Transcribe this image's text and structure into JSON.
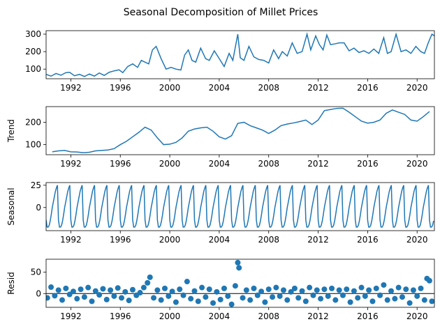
{
  "figure": {
    "title": "Seasonal Decomposition of Millet Prices"
  },
  "chart_data": [
    {
      "type": "line",
      "panel": "observed",
      "ylabel": "",
      "xlim": [
        1990.0,
        2021.4
      ],
      "ylim": [
        45,
        320
      ],
      "yticks": [
        100,
        200,
        300
      ],
      "xticks": [
        1992,
        1996,
        2000,
        2004,
        2008,
        2012,
        2016,
        2020
      ],
      "color": "#1f77b4",
      "x": [
        1990.0,
        1990.4,
        1990.8,
        1991.2,
        1991.6,
        1991.9,
        1992.3,
        1992.7,
        1993.1,
        1993.5,
        1993.9,
        1994.3,
        1994.7,
        1995.1,
        1995.5,
        1995.9,
        1996.2,
        1996.6,
        1997.0,
        1997.4,
        1997.7,
        1998.0,
        1998.3,
        1998.6,
        1998.9,
        1999.3,
        1999.7,
        2000.1,
        2000.5,
        2000.9,
        2001.2,
        2001.5,
        2001.8,
        2002.1,
        2002.5,
        2002.9,
        2003.2,
        2003.6,
        2004.0,
        2004.4,
        2004.8,
        2005.1,
        2005.5,
        2005.7,
        2006.0,
        2006.4,
        2006.8,
        2007.2,
        2007.6,
        2008.0,
        2008.4,
        2008.8,
        2009.1,
        2009.5,
        2009.9,
        2010.3,
        2010.7,
        2011.1,
        2011.4,
        2011.8,
        2012.1,
        2012.4,
        2012.7,
        2013.0,
        2013.4,
        2013.7,
        2014.1,
        2014.5,
        2014.9,
        2015.3,
        2015.7,
        2016.1,
        2016.5,
        2016.9,
        2017.3,
        2017.6,
        2017.9,
        2018.3,
        2018.7,
        2019.1,
        2019.5,
        2019.9,
        2020.3,
        2020.6,
        2020.9,
        2021.2,
        2021.4
      ],
      "y": [
        70,
        60,
        75,
        65,
        80,
        82,
        62,
        70,
        58,
        72,
        60,
        78,
        64,
        82,
        90,
        96,
        80,
        115,
        130,
        110,
        150,
        140,
        130,
        210,
        230,
        160,
        100,
        110,
        100,
        95,
        180,
        210,
        150,
        140,
        220,
        160,
        150,
        205,
        160,
        115,
        190,
        150,
        300,
        165,
        150,
        230,
        170,
        155,
        150,
        135,
        210,
        160,
        200,
        175,
        250,
        190,
        200,
        300,
        210,
        290,
        240,
        210,
        295,
        240,
        245,
        250,
        250,
        205,
        220,
        195,
        205,
        190,
        215,
        190,
        280,
        190,
        200,
        300,
        200,
        210,
        190,
        230,
        200,
        190,
        250,
        300,
        290
      ]
    },
    {
      "type": "line",
      "panel": "trend",
      "ylabel": "Trend",
      "xlim": [
        1990.0,
        2021.4
      ],
      "ylim": [
        55,
        270
      ],
      "yticks": [
        100,
        200
      ],
      "xticks": [
        1992,
        1996,
        2000,
        2004,
        2008,
        2012,
        2016,
        2020
      ],
      "color": "#1f77b4",
      "x": [
        1990.5,
        1991.0,
        1991.5,
        1992.0,
        1992.5,
        1993.0,
        1993.5,
        1994.0,
        1994.5,
        1995.0,
        1995.5,
        1996.0,
        1996.5,
        1997.0,
        1997.5,
        1998.0,
        1998.5,
        1999.0,
        1999.5,
        2000.0,
        2000.5,
        2001.0,
        2001.5,
        2002.0,
        2002.5,
        2003.0,
        2003.5,
        2004.0,
        2004.5,
        2005.0,
        2005.5,
        2006.0,
        2006.5,
        2007.0,
        2007.5,
        2008.0,
        2008.5,
        2009.0,
        2009.5,
        2010.0,
        2010.5,
        2011.0,
        2011.5,
        2012.0,
        2012.5,
        2013.0,
        2013.5,
        2014.0,
        2014.5,
        2015.0,
        2015.5,
        2016.0,
        2016.5,
        2017.0,
        2017.5,
        2018.0,
        2018.5,
        2019.0,
        2019.5,
        2020.0,
        2020.5,
        2021.0
      ],
      "y": [
        68,
        72,
        74,
        68,
        67,
        64,
        66,
        72,
        74,
        76,
        82,
        100,
        115,
        135,
        155,
        178,
        165,
        130,
        100,
        102,
        110,
        130,
        160,
        170,
        175,
        178,
        160,
        135,
        125,
        140,
        195,
        200,
        185,
        175,
        165,
        150,
        165,
        185,
        192,
        197,
        203,
        210,
        190,
        210,
        252,
        257,
        262,
        263,
        245,
        225,
        205,
        196,
        200,
        210,
        240,
        255,
        245,
        235,
        210,
        205,
        225,
        248
      ]
    },
    {
      "type": "line",
      "panel": "seasonal",
      "ylabel": "Seasonal",
      "xlim": [
        1990.0,
        2021.4
      ],
      "ylim": [
        -26,
        28
      ],
      "yticks": [
        0,
        25
      ],
      "xticks": [
        1992,
        1996,
        2000,
        2004,
        2008,
        2012,
        2016,
        2020
      ],
      "color": "#1f77b4",
      "pattern": [
        -14,
        -22,
        -22,
        -20,
        -15,
        -8,
        0,
        6,
        12,
        18,
        22,
        25
      ],
      "start": 1990.0,
      "end": 2021.4
    },
    {
      "type": "scatter",
      "panel": "resid",
      "ylabel": "Resid",
      "xlim": [
        1990.0,
        2021.4
      ],
      "ylim": [
        -32,
        80
      ],
      "yticks": [
        0,
        50
      ],
      "xticks": [
        1992,
        1996,
        2000,
        2004,
        2008,
        2012,
        2016,
        2020
      ],
      "color": "#1f77b4",
      "baseline": 0,
      "x": [
        1990.1,
        1990.4,
        1990.7,
        1991.0,
        1991.3,
        1991.6,
        1991.9,
        1992.2,
        1992.5,
        1992.8,
        1993.1,
        1993.4,
        1993.7,
        1994.0,
        1994.3,
        1994.6,
        1994.9,
        1995.2,
        1995.5,
        1995.8,
        1996.1,
        1996.4,
        1996.7,
        1997.0,
        1997.3,
        1997.6,
        1997.9,
        1998.2,
        1998.4,
        1998.7,
        1999.0,
        1999.3,
        1999.6,
        1999.9,
        2000.2,
        2000.5,
        2000.8,
        2001.1,
        2001.4,
        2001.7,
        2002.0,
        2002.3,
        2002.6,
        2002.9,
        2003.2,
        2003.5,
        2003.8,
        2004.1,
        2004.4,
        2004.7,
        2005.0,
        2005.3,
        2005.5,
        2005.6,
        2005.9,
        2006.2,
        2006.5,
        2006.8,
        2007.1,
        2007.4,
        2007.7,
        2008.0,
        2008.3,
        2008.6,
        2008.9,
        2009.2,
        2009.5,
        2009.8,
        2010.1,
        2010.4,
        2010.7,
        2011.0,
        2011.3,
        2011.6,
        2011.9,
        2012.2,
        2012.5,
        2012.8,
        2013.1,
        2013.4,
        2013.7,
        2014.0,
        2014.3,
        2014.6,
        2014.9,
        2015.2,
        2015.5,
        2015.8,
        2016.1,
        2016.4,
        2016.7,
        2017.0,
        2017.3,
        2017.6,
        2017.9,
        2018.2,
        2018.5,
        2018.8,
        2019.1,
        2019.4,
        2019.7,
        2020.0,
        2020.3,
        2020.6,
        2020.8,
        2021.0,
        2021.2
      ],
      "y": [
        -10,
        15,
        -5,
        8,
        -15,
        12,
        -2,
        5,
        -12,
        10,
        -8,
        14,
        -18,
        6,
        -3,
        11,
        -14,
        8,
        -6,
        13,
        -10,
        4,
        -16,
        9,
        -4,
        2,
        14,
        25,
        38,
        -10,
        8,
        -15,
        12,
        -6,
        5,
        -20,
        10,
        -4,
        28,
        -12,
        6,
        -18,
        14,
        -8,
        10,
        -22,
        4,
        -14,
        12,
        -6,
        -25,
        18,
        72,
        60,
        -10,
        8,
        -15,
        12,
        -4,
        5,
        -20,
        10,
        -8,
        14,
        -6,
        8,
        -15,
        4,
        12,
        -10,
        6,
        -18,
        14,
        -4,
        8,
        -12,
        10,
        -6,
        12,
        -15,
        8,
        -4,
        10,
        -20,
        6,
        -10,
        14,
        -6,
        8,
        -18,
        12,
        -4,
        20,
        -15,
        6,
        -12,
        14,
        -8,
        10,
        -22,
        8,
        -6,
        12,
        -15,
        35,
        30,
        -18
      ]
    }
  ]
}
